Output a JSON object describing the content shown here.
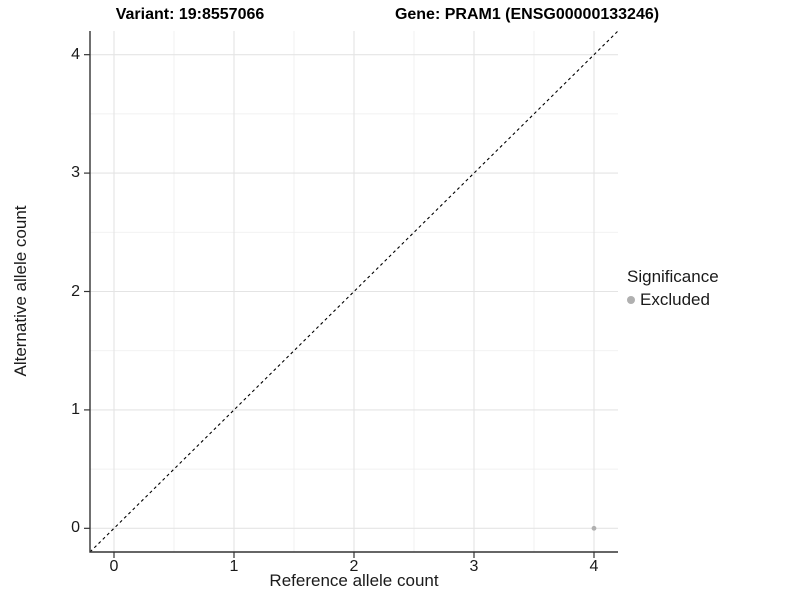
{
  "titles": {
    "variant": "Variant: 19:8557066",
    "gene": "Gene: PRAM1 (ENSG00000133246)"
  },
  "axes": {
    "x": {
      "label": "Reference allele count"
    },
    "y": {
      "label": "Alternative allele count"
    }
  },
  "legend": {
    "title": "Significance",
    "items": [
      {
        "label": "Excluded",
        "color": "#b0b0b0"
      }
    ]
  },
  "colors": {
    "background": "#ffffff",
    "axis_line": "#333333",
    "grid_major": "#e4e4e4",
    "grid_minor": "#f0f0f0",
    "tick_mark": "#333333",
    "text": "#1a1a1a",
    "title_text": "#000000",
    "point": "#b0b0b0",
    "identity_line": "#000000"
  },
  "chart_data": {
    "type": "scatter",
    "title": "Variant: 19:8557066 | Gene: PRAM1 (ENSG00000133246)",
    "xlabel": "Reference allele count",
    "ylabel": "Alternative allele count",
    "xlim": [
      -0.2,
      4.2
    ],
    "ylim": [
      -0.2,
      4.2
    ],
    "xticks": [
      0,
      1,
      2,
      3,
      4
    ],
    "yticks": [
      0,
      1,
      2,
      3,
      4
    ],
    "grid": "on",
    "minor_grid": "on",
    "legend_position": "right",
    "series": [
      {
        "name": "Excluded",
        "color": "#b0b0b0",
        "points": [
          {
            "x": 4,
            "y": 0
          }
        ]
      }
    ],
    "reference_line": {
      "type": "identity",
      "style": "dashed",
      "color": "#000000",
      "from": [
        -0.2,
        -0.2
      ],
      "to": [
        4.2,
        4.2
      ]
    }
  }
}
